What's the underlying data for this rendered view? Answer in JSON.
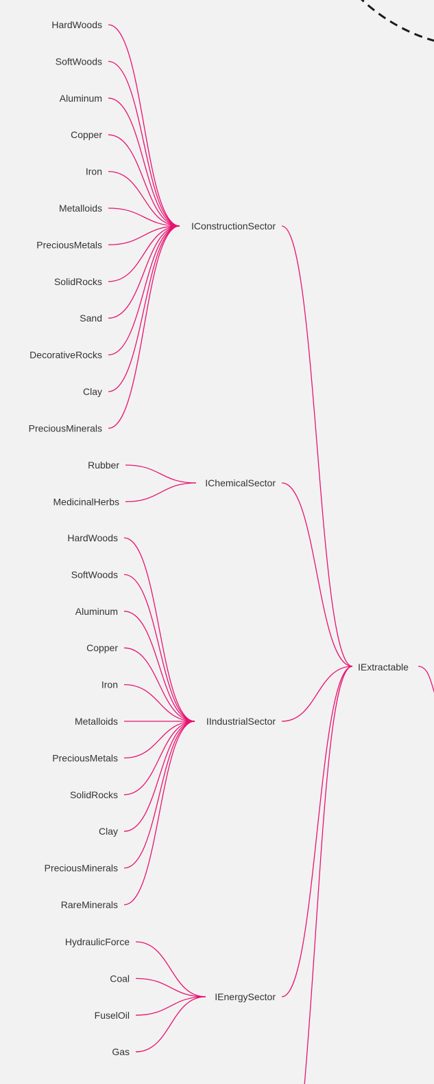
{
  "colors": {
    "background": "#f2f2f2",
    "link": "#e8116f",
    "text": "#333333",
    "dashed_arc": "#1a1a1a"
  },
  "root": {
    "label": "IExtractable"
  },
  "groups": [
    {
      "label": "IConstructionSector",
      "leaves": [
        "HardWoods",
        "SoftWoods",
        "Aluminum",
        "Copper",
        "Iron",
        "Metalloids",
        "PreciousMetals",
        "SolidRocks",
        "Sand",
        "DecorativeRocks",
        "Clay",
        "PreciousMinerals"
      ]
    },
    {
      "label": "IChemicalSector",
      "leaves": [
        "Rubber",
        "MedicinalHerbs"
      ]
    },
    {
      "label": "IIndustrialSector",
      "leaves": [
        "HardWoods",
        "SoftWoods",
        "Aluminum",
        "Copper",
        "Iron",
        "Metalloids",
        "PreciousMetals",
        "SolidRocks",
        "Clay",
        "PreciousMinerals",
        "RareMinerals"
      ]
    },
    {
      "label": "IEnergySector",
      "leaves": [
        "HydraulicForce",
        "Coal",
        "FuselOil",
        "Gas"
      ]
    }
  ]
}
